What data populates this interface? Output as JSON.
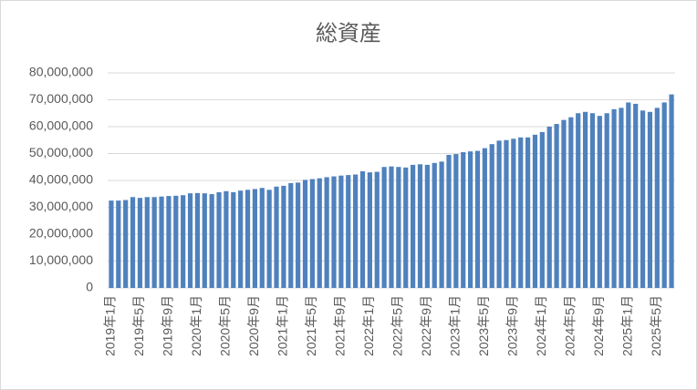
{
  "chart_data": {
    "type": "bar",
    "title": "総資産",
    "categories": [
      "2019年1月",
      null,
      null,
      null,
      "2019年5月",
      null,
      null,
      null,
      "2019年9月",
      null,
      null,
      null,
      "2020年1月",
      null,
      null,
      null,
      "2020年5月",
      null,
      null,
      null,
      "2020年9月",
      null,
      null,
      null,
      "2021年1月",
      null,
      null,
      null,
      "2021年5月",
      null,
      null,
      null,
      "2021年9月",
      null,
      null,
      null,
      "2022年1月",
      null,
      null,
      null,
      "2022年5月",
      null,
      null,
      null,
      "2022年9月",
      null,
      null,
      null,
      "2023年1月",
      null,
      null,
      null,
      "2023年5月",
      null,
      null,
      null,
      "2023年9月",
      null,
      null,
      null,
      "2024年1月",
      null,
      null,
      null,
      "2024年5月",
      null,
      null,
      null,
      "2024年9月",
      null,
      null,
      null,
      "2025年1月",
      null,
      null,
      null,
      "2025年5月",
      null,
      null
    ],
    "values": [
      32500000,
      32500000,
      32700000,
      33800000,
      33500000,
      33800000,
      33800000,
      34000000,
      34200000,
      34300000,
      34500000,
      35200000,
      35300000,
      35200000,
      34900000,
      35600000,
      36000000,
      35600000,
      36200000,
      36500000,
      36800000,
      37200000,
      36500000,
      37700000,
      38000000,
      39000000,
      39200000,
      40200000,
      40500000,
      40800000,
      41200000,
      41500000,
      41800000,
      42000000,
      42200000,
      43400000,
      43000000,
      43200000,
      45000000,
      45200000,
      45000000,
      44800000,
      45800000,
      46000000,
      45800000,
      46500000,
      47000000,
      49500000,
      49800000,
      50500000,
      50800000,
      51000000,
      52000000,
      53500000,
      54800000,
      55000000,
      55500000,
      56000000,
      56000000,
      57000000,
      58000000,
      60000000,
      61000000,
      62500000,
      63500000,
      65000000,
      65500000,
      65000000,
      64000000,
      65000000,
      66500000,
      67000000,
      69000000,
      68500000,
      66000000,
      65500000,
      67000000,
      69000000,
      72000000
    ],
    "color": "#4f81bd",
    "ylim": [
      0,
      80000000
    ],
    "yticks": [
      0,
      {
        "value": 10000000,
        "label": "10,000,000"
      },
      {
        "value": 20000000,
        "label": "20,000,000"
      },
      {
        "value": 30000000,
        "label": "30,000,000"
      },
      {
        "value": 40000000,
        "label": "40,000,000"
      },
      {
        "value": 50000000,
        "label": "50,000,000"
      },
      {
        "value": 60000000,
        "label": "60,000,000"
      },
      {
        "value": 70000000,
        "label": "70,000,000"
      },
      {
        "value": 80000000,
        "label": "80,000,000"
      }
    ],
    "grid": true
  }
}
